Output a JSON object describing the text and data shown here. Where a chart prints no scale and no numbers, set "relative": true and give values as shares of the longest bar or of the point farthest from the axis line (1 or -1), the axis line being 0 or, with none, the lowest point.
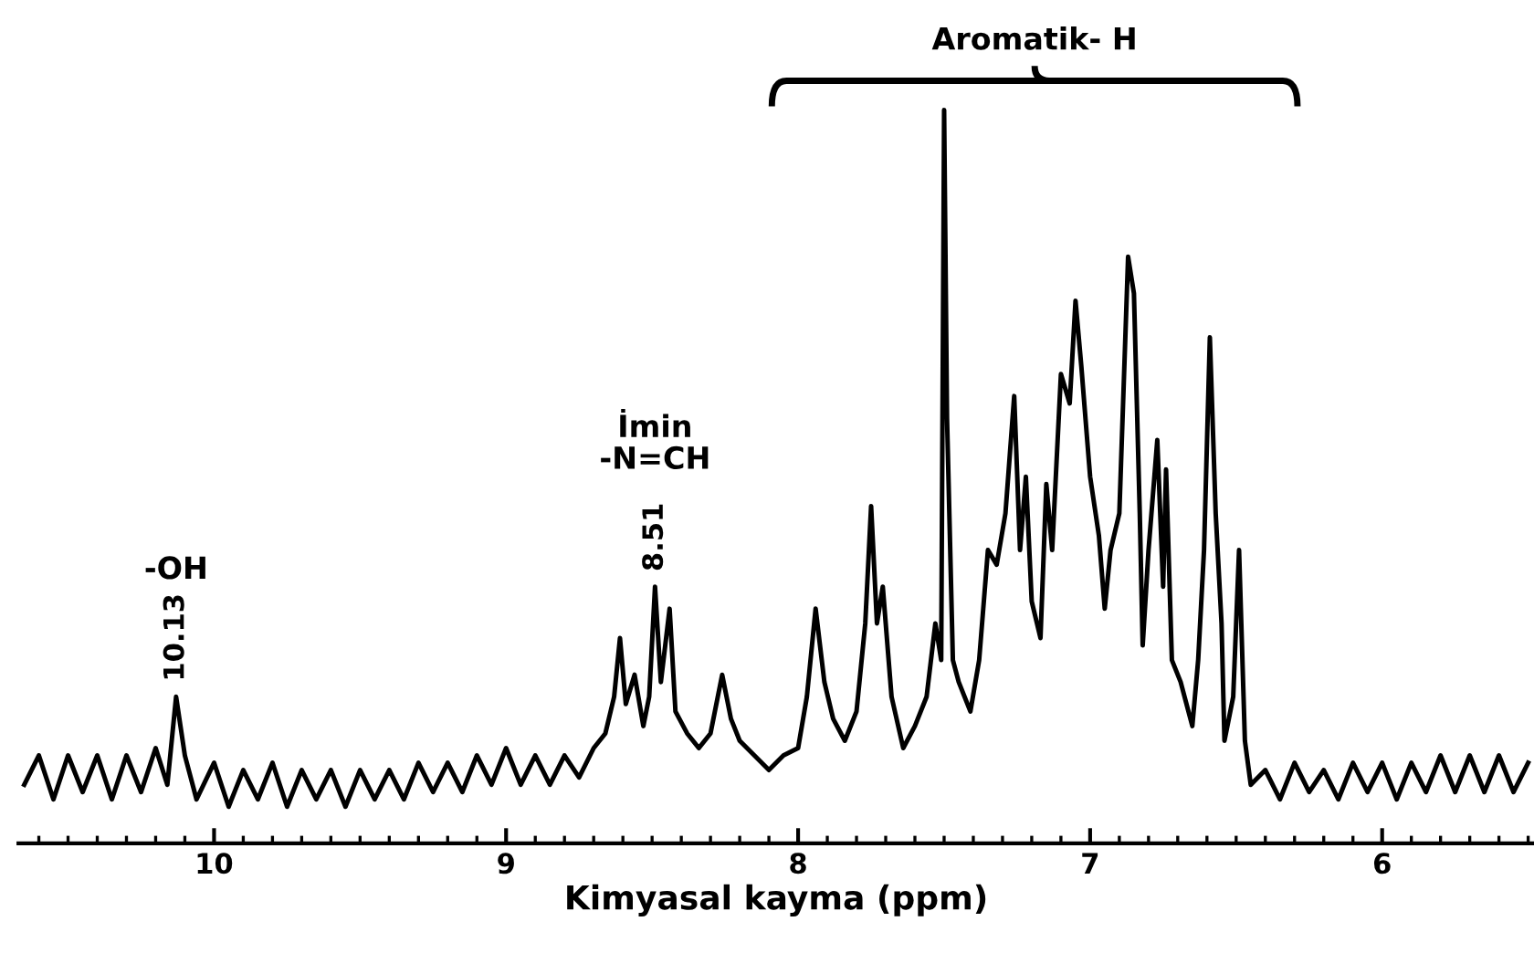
{
  "chart_data": {
    "type": "line",
    "relative": true,
    "xlabel": "Kimyasal kayma (ppm)",
    "xlim": [
      10.67,
      5.48
    ],
    "xticks": [
      10,
      9,
      8,
      7,
      6,
      {
        "value": 10.6,
        "label": null
      },
      {
        "value": 10.5,
        "label": null
      },
      {
        "value": 10.4,
        "label": null
      },
      {
        "value": 10.3,
        "label": null
      },
      {
        "value": 10.2,
        "label": null
      },
      {
        "value": 10.1,
        "label": null
      },
      {
        "value": 9.9,
        "label": null
      },
      {
        "value": 9.8,
        "label": null
      },
      {
        "value": 9.7,
        "label": null
      },
      {
        "value": 9.6,
        "label": null
      },
      {
        "value": 9.5,
        "label": null
      },
      {
        "value": 9.4,
        "label": null
      },
      {
        "value": 9.3,
        "label": null
      },
      {
        "value": 9.2,
        "label": null
      },
      {
        "value": 9.1,
        "label": null
      },
      {
        "value": 8.9,
        "label": null
      },
      {
        "value": 8.8,
        "label": null
      },
      {
        "value": 8.7,
        "label": null
      },
      {
        "value": 8.6,
        "label": null
      },
      {
        "value": 8.5,
        "label": null
      },
      {
        "value": 8.4,
        "label": null
      },
      {
        "value": 8.3,
        "label": null
      },
      {
        "value": 8.2,
        "label": null
      },
      {
        "value": 8.1,
        "label": null
      },
      {
        "value": 7.9,
        "label": null
      },
      {
        "value": 7.8,
        "label": null
      },
      {
        "value": 7.7,
        "label": null
      },
      {
        "value": 7.6,
        "label": null
      },
      {
        "value": 7.5,
        "label": null
      },
      {
        "value": 7.4,
        "label": null
      },
      {
        "value": 7.3,
        "label": null
      },
      {
        "value": 7.2,
        "label": null
      },
      {
        "value": 7.1,
        "label": null
      },
      {
        "value": 6.9,
        "label": null
      },
      {
        "value": 6.8,
        "label": null
      },
      {
        "value": 6.7,
        "label": null
      },
      {
        "value": 6.6,
        "label": null
      },
      {
        "value": 6.5,
        "label": null
      },
      {
        "value": 6.4,
        "label": null
      },
      {
        "value": 6.3,
        "label": null
      },
      {
        "value": 6.2,
        "label": null
      },
      {
        "value": 6.1,
        "label": null
      },
      {
        "value": 5.9,
        "label": null
      },
      {
        "value": 5.8,
        "label": null
      },
      {
        "value": 5.7,
        "label": null
      },
      {
        "value": 5.6,
        "label": null
      },
      {
        "value": 5.5,
        "label": null
      }
    ],
    "tick_labels": "x",
    "grid": false,
    "legend": false,
    "marker": "none",
    "line_style": "solid",
    "series": [
      {
        "color": "#000000",
        "x": [
          10.65,
          10.6,
          10.55,
          10.5,
          10.45,
          10.4,
          10.35,
          10.3,
          10.25,
          10.2,
          10.16,
          10.13,
          10.1,
          10.06,
          10.0,
          9.95,
          9.9,
          9.85,
          9.8,
          9.75,
          9.7,
          9.65,
          9.6,
          9.55,
          9.5,
          9.45,
          9.4,
          9.35,
          9.3,
          9.25,
          9.2,
          9.15,
          9.1,
          9.05,
          9.0,
          8.95,
          8.9,
          8.85,
          8.8,
          8.75,
          8.7,
          8.66,
          8.63,
          8.61,
          8.59,
          8.56,
          8.53,
          8.51,
          8.49,
          8.47,
          8.44,
          8.42,
          8.38,
          8.34,
          8.3,
          8.26,
          8.23,
          8.2,
          8.15,
          8.1,
          8.05,
          8.0,
          7.97,
          7.94,
          7.91,
          7.88,
          7.84,
          7.8,
          7.77,
          7.75,
          7.73,
          7.71,
          7.68,
          7.64,
          7.6,
          7.56,
          7.53,
          7.51,
          7.5,
          7.49,
          7.47,
          7.45,
          7.41,
          7.38,
          7.35,
          7.32,
          7.29,
          7.26,
          7.24,
          7.22,
          7.2,
          7.17,
          7.15,
          7.13,
          7.1,
          7.07,
          7.05,
          7.03,
          7.0,
          6.97,
          6.95,
          6.93,
          6.9,
          6.87,
          6.85,
          6.83,
          6.82,
          6.8,
          6.77,
          6.75,
          6.74,
          6.72,
          6.69,
          6.65,
          6.63,
          6.61,
          6.59,
          6.57,
          6.55,
          6.54,
          6.51,
          6.49,
          6.47,
          6.45,
          6.4,
          6.35,
          6.3,
          6.25,
          6.2,
          6.15,
          6.1,
          6.05,
          6.0,
          5.95,
          5.9,
          5.85,
          5.8,
          5.75,
          5.7,
          5.65,
          5.6,
          5.55,
          5.5
        ],
        "values": [
          0.08,
          0.12,
          0.06,
          0.12,
          0.07,
          0.12,
          0.06,
          0.12,
          0.07,
          0.13,
          0.08,
          0.2,
          0.12,
          0.06,
          0.11,
          0.05,
          0.1,
          0.06,
          0.11,
          0.05,
          0.1,
          0.06,
          0.1,
          0.05,
          0.1,
          0.06,
          0.1,
          0.06,
          0.11,
          0.07,
          0.11,
          0.07,
          0.12,
          0.08,
          0.13,
          0.08,
          0.12,
          0.08,
          0.12,
          0.09,
          0.13,
          0.15,
          0.2,
          0.28,
          0.19,
          0.23,
          0.16,
          0.2,
          0.35,
          0.22,
          0.32,
          0.18,
          0.15,
          0.13,
          0.15,
          0.23,
          0.17,
          0.14,
          0.12,
          0.1,
          0.12,
          0.13,
          0.2,
          0.32,
          0.22,
          0.17,
          0.14,
          0.18,
          0.3,
          0.46,
          0.3,
          0.35,
          0.2,
          0.13,
          0.16,
          0.2,
          0.3,
          0.25,
          1.0,
          0.58,
          0.25,
          0.22,
          0.18,
          0.25,
          0.4,
          0.38,
          0.45,
          0.61,
          0.4,
          0.5,
          0.33,
          0.28,
          0.49,
          0.4,
          0.64,
          0.6,
          0.74,
          0.65,
          0.5,
          0.42,
          0.32,
          0.4,
          0.45,
          0.8,
          0.75,
          0.45,
          0.27,
          0.4,
          0.55,
          0.35,
          0.51,
          0.25,
          0.22,
          0.16,
          0.25,
          0.4,
          0.69,
          0.45,
          0.3,
          0.14,
          0.2,
          0.4,
          0.14,
          0.08,
          0.1,
          0.06,
          0.11,
          0.07,
          0.1,
          0.06,
          0.11,
          0.07,
          0.11,
          0.06,
          0.11,
          0.07,
          0.12,
          0.07,
          0.12,
          0.07,
          0.12,
          0.07,
          0.11
        ]
      }
    ],
    "annotations": [
      {
        "text": "10.13",
        "x": 10.13,
        "y": 0.2
      },
      "-OH",
      {
        "text": "8.51",
        "x": 8.49,
        "y": 0.35
      },
      "İmin\n-N=CH",
      "Aromatik- H"
    ]
  }
}
